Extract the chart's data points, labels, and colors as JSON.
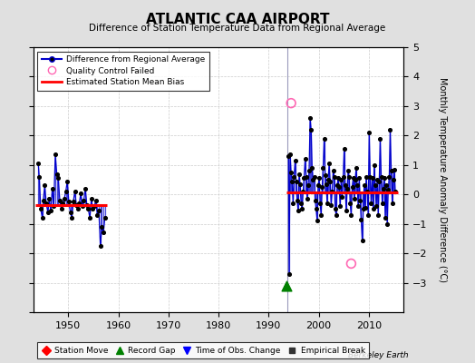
{
  "title": "ATLANTIC CAA AIRPORT",
  "subtitle": "Difference of Station Temperature Data from Regional Average",
  "ylabel_right": "Monthly Temperature Anomaly Difference (°C)",
  "ylim": [
    -4,
    5
  ],
  "xlim": [
    1943,
    2017
  ],
  "xticks": [
    1950,
    1960,
    1970,
    1980,
    1990,
    2000,
    2010
  ],
  "yticks_right": [
    -3,
    -2,
    -1,
    0,
    1,
    2,
    3,
    4,
    5
  ],
  "yticks_left": [
    -4,
    -3,
    -2,
    -1,
    0,
    1,
    2,
    3,
    4,
    5
  ],
  "watermark": "Berkeley Earth",
  "background_color": "#e0e0e0",
  "plot_bg_color": "#ffffff",
  "segment1_start": 1943.5,
  "segment1_end": 1957.8,
  "segment2_start": 1993.5,
  "segment2_end": 2015.8,
  "bias1": -0.35,
  "bias2": 0.08,
  "record_gap_x": 1993.5,
  "record_gap_y": -3.1,
  "qc_fail_points": [
    [
      1994.5,
      3.1
    ],
    [
      2006.5,
      -2.35
    ]
  ],
  "vertical_line_x": 1993.7,
  "line_color": "#0000cc",
  "dot_color": "#000000",
  "bias_color": "#ff0000",
  "qc_color": "#ff69b4",
  "gap_color": "#008000",
  "time_obs_color": "#0000ff",
  "station_move_color": "#ff0000",
  "empirical_break_color": "#333333",
  "segment1_data": [
    [
      1944.0,
      1.05
    ],
    [
      1944.2,
      0.6
    ],
    [
      1944.5,
      -0.5
    ],
    [
      1944.8,
      -0.8
    ],
    [
      1945.0,
      -0.2
    ],
    [
      1945.3,
      0.3
    ],
    [
      1945.6,
      -0.3
    ],
    [
      1945.9,
      -0.6
    ],
    [
      1946.2,
      -0.15
    ],
    [
      1946.5,
      -0.55
    ],
    [
      1946.8,
      0.2
    ],
    [
      1947.1,
      -0.4
    ],
    [
      1947.4,
      1.35
    ],
    [
      1947.7,
      0.7
    ],
    [
      1948.0,
      0.55
    ],
    [
      1948.3,
      -0.2
    ],
    [
      1948.6,
      -0.5
    ],
    [
      1948.9,
      -0.3
    ],
    [
      1949.2,
      -0.15
    ],
    [
      1949.5,
      0.1
    ],
    [
      1949.8,
      0.45
    ],
    [
      1950.1,
      -0.25
    ],
    [
      1950.4,
      -0.6
    ],
    [
      1950.7,
      -0.8
    ],
    [
      1951.0,
      -0.25
    ],
    [
      1951.3,
      0.1
    ],
    [
      1951.6,
      -0.35
    ],
    [
      1951.9,
      -0.5
    ],
    [
      1952.2,
      -0.3
    ],
    [
      1952.5,
      0.05
    ],
    [
      1952.8,
      -0.4
    ],
    [
      1953.1,
      -0.2
    ],
    [
      1953.4,
      0.2
    ],
    [
      1953.7,
      -0.35
    ],
    [
      1954.0,
      -0.5
    ],
    [
      1954.3,
      -0.8
    ],
    [
      1954.6,
      -0.15
    ],
    [
      1954.9,
      -0.5
    ],
    [
      1955.2,
      -0.4
    ],
    [
      1955.5,
      -0.2
    ],
    [
      1955.8,
      -0.7
    ],
    [
      1956.1,
      -0.55
    ],
    [
      1956.4,
      -1.75
    ],
    [
      1956.7,
      -1.1
    ],
    [
      1957.0,
      -1.3
    ],
    [
      1957.3,
      -0.8
    ]
  ],
  "segment2_data": [
    [
      1994.0,
      1.3
    ],
    [
      1994.1,
      -2.7
    ],
    [
      1994.3,
      1.35
    ],
    [
      1994.5,
      0.75
    ],
    [
      1994.7,
      0.45
    ],
    [
      1994.9,
      -0.3
    ],
    [
      1995.1,
      0.6
    ],
    [
      1995.3,
      1.15
    ],
    [
      1995.5,
      0.45
    ],
    [
      1995.7,
      -0.2
    ],
    [
      1995.9,
      -0.55
    ],
    [
      1996.1,
      0.7
    ],
    [
      1996.3,
      0.35
    ],
    [
      1996.5,
      -0.3
    ],
    [
      1996.7,
      -0.5
    ],
    [
      1996.9,
      0.1
    ],
    [
      1997.1,
      0.55
    ],
    [
      1997.3,
      1.2
    ],
    [
      1997.5,
      0.6
    ],
    [
      1997.7,
      -0.15
    ],
    [
      1997.9,
      0.3
    ],
    [
      1998.1,
      0.8
    ],
    [
      1998.3,
      2.6
    ],
    [
      1998.5,
      2.2
    ],
    [
      1998.7,
      0.9
    ],
    [
      1998.9,
      0.5
    ],
    [
      1999.1,
      0.6
    ],
    [
      1999.3,
      -0.2
    ],
    [
      1999.5,
      -0.5
    ],
    [
      1999.7,
      -0.9
    ],
    [
      1999.9,
      0.3
    ],
    [
      2000.1,
      0.55
    ],
    [
      2000.3,
      -0.3
    ],
    [
      2000.5,
      -0.7
    ],
    [
      2000.7,
      0.25
    ],
    [
      2000.9,
      0.9
    ],
    [
      2001.1,
      1.9
    ],
    [
      2001.3,
      0.65
    ],
    [
      2001.5,
      0.35
    ],
    [
      2001.7,
      -0.3
    ],
    [
      2001.9,
      0.5
    ],
    [
      2002.1,
      1.05
    ],
    [
      2002.3,
      0.45
    ],
    [
      2002.5,
      -0.35
    ],
    [
      2002.7,
      0.1
    ],
    [
      2002.9,
      0.8
    ],
    [
      2003.1,
      0.6
    ],
    [
      2003.3,
      -0.5
    ],
    [
      2003.5,
      -0.7
    ],
    [
      2003.7,
      0.3
    ],
    [
      2003.9,
      0.55
    ],
    [
      2004.1,
      0.25
    ],
    [
      2004.3,
      -0.4
    ],
    [
      2004.5,
      0.5
    ],
    [
      2004.7,
      -0.1
    ],
    [
      2004.9,
      0.6
    ],
    [
      2005.1,
      1.55
    ],
    [
      2005.3,
      0.3
    ],
    [
      2005.5,
      -0.55
    ],
    [
      2005.7,
      0.2
    ],
    [
      2005.9,
      0.8
    ],
    [
      2006.1,
      0.6
    ],
    [
      2006.3,
      -0.3
    ],
    [
      2006.5,
      -0.7
    ],
    [
      2006.7,
      0.25
    ],
    [
      2006.9,
      0.55
    ],
    [
      2007.1,
      -0.15
    ],
    [
      2007.3,
      0.5
    ],
    [
      2007.5,
      0.9
    ],
    [
      2007.7,
      0.3
    ],
    [
      2007.9,
      -0.4
    ],
    [
      2008.1,
      0.55
    ],
    [
      2008.3,
      -0.2
    ],
    [
      2008.5,
      -0.85
    ],
    [
      2008.7,
      -1.55
    ],
    [
      2008.9,
      -0.5
    ],
    [
      2009.1,
      0.3
    ],
    [
      2009.3,
      -0.45
    ],
    [
      2009.5,
      0.6
    ],
    [
      2009.7,
      0.1
    ],
    [
      2009.9,
      -0.7
    ],
    [
      2010.1,
      2.1
    ],
    [
      2010.3,
      0.6
    ],
    [
      2010.5,
      -0.3
    ],
    [
      2010.7,
      0.55
    ],
    [
      2010.9,
      -0.5
    ],
    [
      2011.1,
      1.0
    ],
    [
      2011.3,
      0.3
    ],
    [
      2011.5,
      -0.4
    ],
    [
      2011.7,
      0.5
    ],
    [
      2011.9,
      -0.7
    ],
    [
      2012.1,
      0.45
    ],
    [
      2012.3,
      1.9
    ],
    [
      2012.5,
      0.6
    ],
    [
      2012.7,
      -0.3
    ],
    [
      2012.9,
      0.2
    ],
    [
      2013.1,
      0.55
    ],
    [
      2013.3,
      -0.8
    ],
    [
      2013.5,
      0.3
    ],
    [
      2013.7,
      -1.0
    ],
    [
      2013.9,
      0.15
    ],
    [
      2014.1,
      0.6
    ],
    [
      2014.3,
      2.2
    ],
    [
      2014.5,
      0.8
    ],
    [
      2014.7,
      -0.3
    ],
    [
      2014.9,
      0.5
    ],
    [
      2015.1,
      0.85
    ],
    [
      2015.3,
      0.1
    ]
  ]
}
